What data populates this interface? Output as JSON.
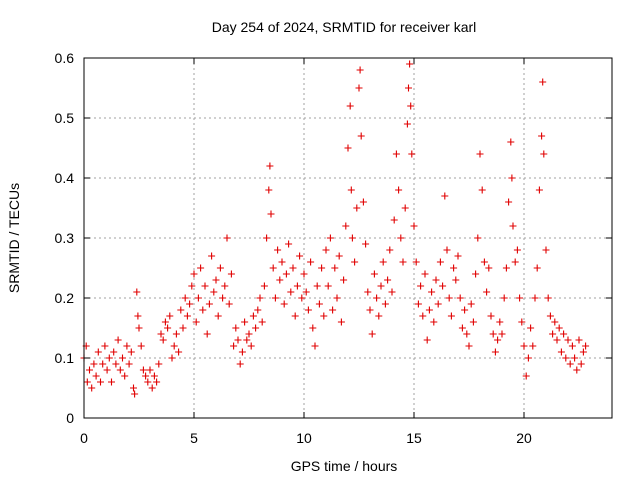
{
  "chart_data": {
    "type": "scatter",
    "title": "Day 254 of 2024, SRMTID for receiver karl",
    "xlabel": "GPS time / hours",
    "ylabel": "SRMTID / TECUs",
    "xlim": [
      0,
      24
    ],
    "ylim": [
      0,
      0.6
    ],
    "x_ticks": [
      0,
      5,
      10,
      15,
      20
    ],
    "x_tick_labels": [
      "0",
      "5",
      "10",
      "15",
      "20"
    ],
    "y_ticks": [
      0,
      0.1,
      0.2,
      0.3,
      0.4,
      0.5,
      0.6
    ],
    "y_tick_labels": [
      "0",
      "0.1",
      "0.2",
      "0.3",
      "0.4",
      "0.5",
      "0.6"
    ],
    "grid": true,
    "marker": "plus",
    "series": [
      {
        "name": "SRMTID",
        "color": "#e00000",
        "points": [
          [
            0.0,
            0.1
          ],
          [
            0.1,
            0.12
          ],
          [
            0.15,
            0.06
          ],
          [
            0.25,
            0.08
          ],
          [
            0.35,
            0.05
          ],
          [
            0.45,
            0.09
          ],
          [
            0.55,
            0.07
          ],
          [
            0.65,
            0.11
          ],
          [
            0.75,
            0.06
          ],
          [
            0.85,
            0.09
          ],
          [
            0.95,
            0.12
          ],
          [
            1.05,
            0.08
          ],
          [
            1.15,
            0.1
          ],
          [
            1.25,
            0.06
          ],
          [
            1.35,
            0.11
          ],
          [
            1.45,
            0.09
          ],
          [
            1.55,
            0.13
          ],
          [
            1.65,
            0.08
          ],
          [
            1.75,
            0.1
          ],
          [
            1.85,
            0.07
          ],
          [
            1.95,
            0.12
          ],
          [
            2.05,
            0.09
          ],
          [
            2.15,
            0.11
          ],
          [
            2.25,
            0.05
          ],
          [
            2.3,
            0.04
          ],
          [
            2.4,
            0.21
          ],
          [
            2.45,
            0.17
          ],
          [
            2.5,
            0.15
          ],
          [
            2.6,
            0.12
          ],
          [
            2.7,
            0.08
          ],
          [
            2.8,
            0.07
          ],
          [
            2.9,
            0.06
          ],
          [
            3.0,
            0.08
          ],
          [
            3.1,
            0.05
          ],
          [
            3.2,
            0.07
          ],
          [
            3.3,
            0.06
          ],
          [
            3.4,
            0.09
          ],
          [
            3.5,
            0.14
          ],
          [
            3.6,
            0.13
          ],
          [
            3.7,
            0.16
          ],
          [
            3.8,
            0.15
          ],
          [
            3.9,
            0.17
          ],
          [
            4.0,
            0.1
          ],
          [
            4.1,
            0.12
          ],
          [
            4.2,
            0.14
          ],
          [
            4.3,
            0.11
          ],
          [
            4.4,
            0.18
          ],
          [
            4.5,
            0.15
          ],
          [
            4.6,
            0.2
          ],
          [
            4.7,
            0.17
          ],
          [
            4.8,
            0.19
          ],
          [
            4.9,
            0.22
          ],
          [
            5.0,
            0.24
          ],
          [
            5.1,
            0.16
          ],
          [
            5.2,
            0.2
          ],
          [
            5.3,
            0.25
          ],
          [
            5.4,
            0.18
          ],
          [
            5.5,
            0.22
          ],
          [
            5.6,
            0.14
          ],
          [
            5.7,
            0.19
          ],
          [
            5.8,
            0.27
          ],
          [
            5.9,
            0.21
          ],
          [
            6.0,
            0.23
          ],
          [
            6.1,
            0.17
          ],
          [
            6.2,
            0.25
          ],
          [
            6.3,
            0.2
          ],
          [
            6.4,
            0.22
          ],
          [
            6.5,
            0.3
          ],
          [
            6.6,
            0.19
          ],
          [
            6.7,
            0.24
          ],
          [
            6.8,
            0.12
          ],
          [
            6.9,
            0.15
          ],
          [
            7.0,
            0.13
          ],
          [
            7.1,
            0.09
          ],
          [
            7.2,
            0.11
          ],
          [
            7.3,
            0.16
          ],
          [
            7.4,
            0.13
          ],
          [
            7.5,
            0.14
          ],
          [
            7.6,
            0.12
          ],
          [
            7.7,
            0.17
          ],
          [
            7.8,
            0.15
          ],
          [
            7.9,
            0.18
          ],
          [
            8.0,
            0.2
          ],
          [
            8.1,
            0.16
          ],
          [
            8.2,
            0.22
          ],
          [
            8.3,
            0.3
          ],
          [
            8.4,
            0.38
          ],
          [
            8.45,
            0.42
          ],
          [
            8.5,
            0.34
          ],
          [
            8.6,
            0.25
          ],
          [
            8.7,
            0.2
          ],
          [
            8.8,
            0.28
          ],
          [
            8.9,
            0.23
          ],
          [
            9.0,
            0.26
          ],
          [
            9.1,
            0.19
          ],
          [
            9.2,
            0.24
          ],
          [
            9.3,
            0.29
          ],
          [
            9.4,
            0.21
          ],
          [
            9.5,
            0.25
          ],
          [
            9.6,
            0.17
          ],
          [
            9.7,
            0.22
          ],
          [
            9.8,
            0.27
          ],
          [
            9.9,
            0.2
          ],
          [
            10.0,
            0.24
          ],
          [
            10.1,
            0.21
          ],
          [
            10.2,
            0.18
          ],
          [
            10.3,
            0.26
          ],
          [
            10.4,
            0.15
          ],
          [
            10.5,
            0.12
          ],
          [
            10.6,
            0.22
          ],
          [
            10.7,
            0.19
          ],
          [
            10.8,
            0.25
          ],
          [
            10.9,
            0.17
          ],
          [
            11.0,
            0.28
          ],
          [
            11.1,
            0.22
          ],
          [
            11.2,
            0.3
          ],
          [
            11.3,
            0.18
          ],
          [
            11.4,
            0.25
          ],
          [
            11.5,
            0.2
          ],
          [
            11.6,
            0.27
          ],
          [
            11.7,
            0.16
          ],
          [
            11.8,
            0.23
          ],
          [
            11.9,
            0.32
          ],
          [
            12.0,
            0.45
          ],
          [
            12.1,
            0.52
          ],
          [
            12.15,
            0.38
          ],
          [
            12.2,
            0.3
          ],
          [
            12.3,
            0.26
          ],
          [
            12.4,
            0.35
          ],
          [
            12.5,
            0.55
          ],
          [
            12.55,
            0.58
          ],
          [
            12.6,
            0.47
          ],
          [
            12.7,
            0.36
          ],
          [
            12.8,
            0.29
          ],
          [
            12.9,
            0.21
          ],
          [
            13.0,
            0.18
          ],
          [
            13.1,
            0.14
          ],
          [
            13.2,
            0.24
          ],
          [
            13.3,
            0.2
          ],
          [
            13.4,
            0.17
          ],
          [
            13.5,
            0.22
          ],
          [
            13.6,
            0.26
          ],
          [
            13.7,
            0.19
          ],
          [
            13.8,
            0.23
          ],
          [
            13.9,
            0.28
          ],
          [
            14.0,
            0.21
          ],
          [
            14.1,
            0.33
          ],
          [
            14.2,
            0.44
          ],
          [
            14.3,
            0.38
          ],
          [
            14.4,
            0.3
          ],
          [
            14.5,
            0.26
          ],
          [
            14.6,
            0.35
          ],
          [
            14.7,
            0.49
          ],
          [
            14.75,
            0.55
          ],
          [
            14.8,
            0.59
          ],
          [
            14.85,
            0.52
          ],
          [
            14.9,
            0.44
          ],
          [
            15.0,
            0.32
          ],
          [
            15.1,
            0.26
          ],
          [
            15.2,
            0.19
          ],
          [
            15.3,
            0.22
          ],
          [
            15.4,
            0.17
          ],
          [
            15.5,
            0.24
          ],
          [
            15.6,
            0.13
          ],
          [
            15.7,
            0.18
          ],
          [
            15.8,
            0.21
          ],
          [
            15.9,
            0.16
          ],
          [
            16.0,
            0.23
          ],
          [
            16.1,
            0.19
          ],
          [
            16.2,
            0.26
          ],
          [
            16.3,
            0.22
          ],
          [
            16.4,
            0.37
          ],
          [
            16.5,
            0.28
          ],
          [
            16.6,
            0.2
          ],
          [
            16.7,
            0.17
          ],
          [
            16.8,
            0.25
          ],
          [
            16.9,
            0.23
          ],
          [
            17.0,
            0.27
          ],
          [
            17.1,
            0.2
          ],
          [
            17.2,
            0.15
          ],
          [
            17.3,
            0.18
          ],
          [
            17.4,
            0.14
          ],
          [
            17.5,
            0.12
          ],
          [
            17.6,
            0.19
          ],
          [
            17.7,
            0.16
          ],
          [
            17.8,
            0.24
          ],
          [
            17.9,
            0.3
          ],
          [
            18.0,
            0.44
          ],
          [
            18.1,
            0.38
          ],
          [
            18.2,
            0.26
          ],
          [
            18.3,
            0.21
          ],
          [
            18.4,
            0.25
          ],
          [
            18.5,
            0.17
          ],
          [
            18.6,
            0.14
          ],
          [
            18.7,
            0.11
          ],
          [
            18.8,
            0.13
          ],
          [
            18.9,
            0.16
          ],
          [
            19.0,
            0.14
          ],
          [
            19.1,
            0.2
          ],
          [
            19.2,
            0.25
          ],
          [
            19.3,
            0.36
          ],
          [
            19.4,
            0.46
          ],
          [
            19.45,
            0.4
          ],
          [
            19.5,
            0.32
          ],
          [
            19.6,
            0.26
          ],
          [
            19.7,
            0.28
          ],
          [
            19.8,
            0.2
          ],
          [
            19.9,
            0.16
          ],
          [
            20.0,
            0.12
          ],
          [
            20.1,
            0.07
          ],
          [
            20.2,
            0.1
          ],
          [
            20.3,
            0.15
          ],
          [
            20.4,
            0.12
          ],
          [
            20.5,
            0.2
          ],
          [
            20.6,
            0.25
          ],
          [
            20.7,
            0.38
          ],
          [
            20.8,
            0.47
          ],
          [
            20.85,
            0.56
          ],
          [
            20.9,
            0.44
          ],
          [
            21.0,
            0.28
          ],
          [
            21.1,
            0.2
          ],
          [
            21.2,
            0.17
          ],
          [
            21.3,
            0.14
          ],
          [
            21.4,
            0.16
          ],
          [
            21.5,
            0.13
          ],
          [
            21.6,
            0.15
          ],
          [
            21.7,
            0.11
          ],
          [
            21.8,
            0.14
          ],
          [
            21.9,
            0.1
          ],
          [
            22.0,
            0.13
          ],
          [
            22.1,
            0.09
          ],
          [
            22.2,
            0.12
          ],
          [
            22.3,
            0.1
          ],
          [
            22.4,
            0.08
          ],
          [
            22.5,
            0.13
          ],
          [
            22.6,
            0.09
          ],
          [
            22.7,
            0.11
          ],
          [
            22.8,
            0.12
          ]
        ]
      }
    ]
  }
}
